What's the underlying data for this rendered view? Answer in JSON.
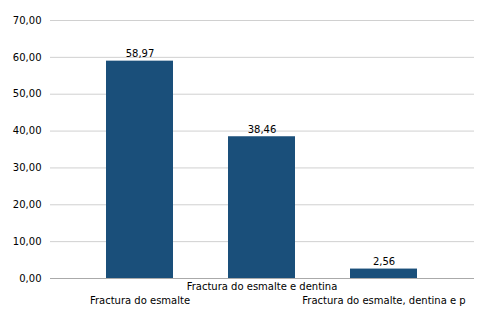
{
  "chart_data": {
    "type": "bar",
    "categories": [
      "Fractura do esmalte",
      "Fractura do esmalte e dentina",
      "Fractura do esmalte, dentina e p"
    ],
    "values": [
      58.97,
      38.46,
      2.56
    ],
    "value_labels": [
      "58,97",
      "38,46",
      "2,56"
    ],
    "data_labels": true,
    "color": "#1A4F7A",
    "ylim": [
      0,
      70
    ],
    "yticks": [
      {
        "value": 0,
        "label": "0,00"
      },
      {
        "value": 10,
        "label": "10,00"
      },
      {
        "value": 20,
        "label": "20,00"
      },
      {
        "value": 30,
        "label": "30,00"
      },
      {
        "value": 40,
        "label": "40,00"
      },
      {
        "value": 50,
        "label": "50,00"
      },
      {
        "value": 60,
        "label": "60,00"
      },
      {
        "value": 70,
        "label": "70,00"
      }
    ],
    "grid": true
  }
}
